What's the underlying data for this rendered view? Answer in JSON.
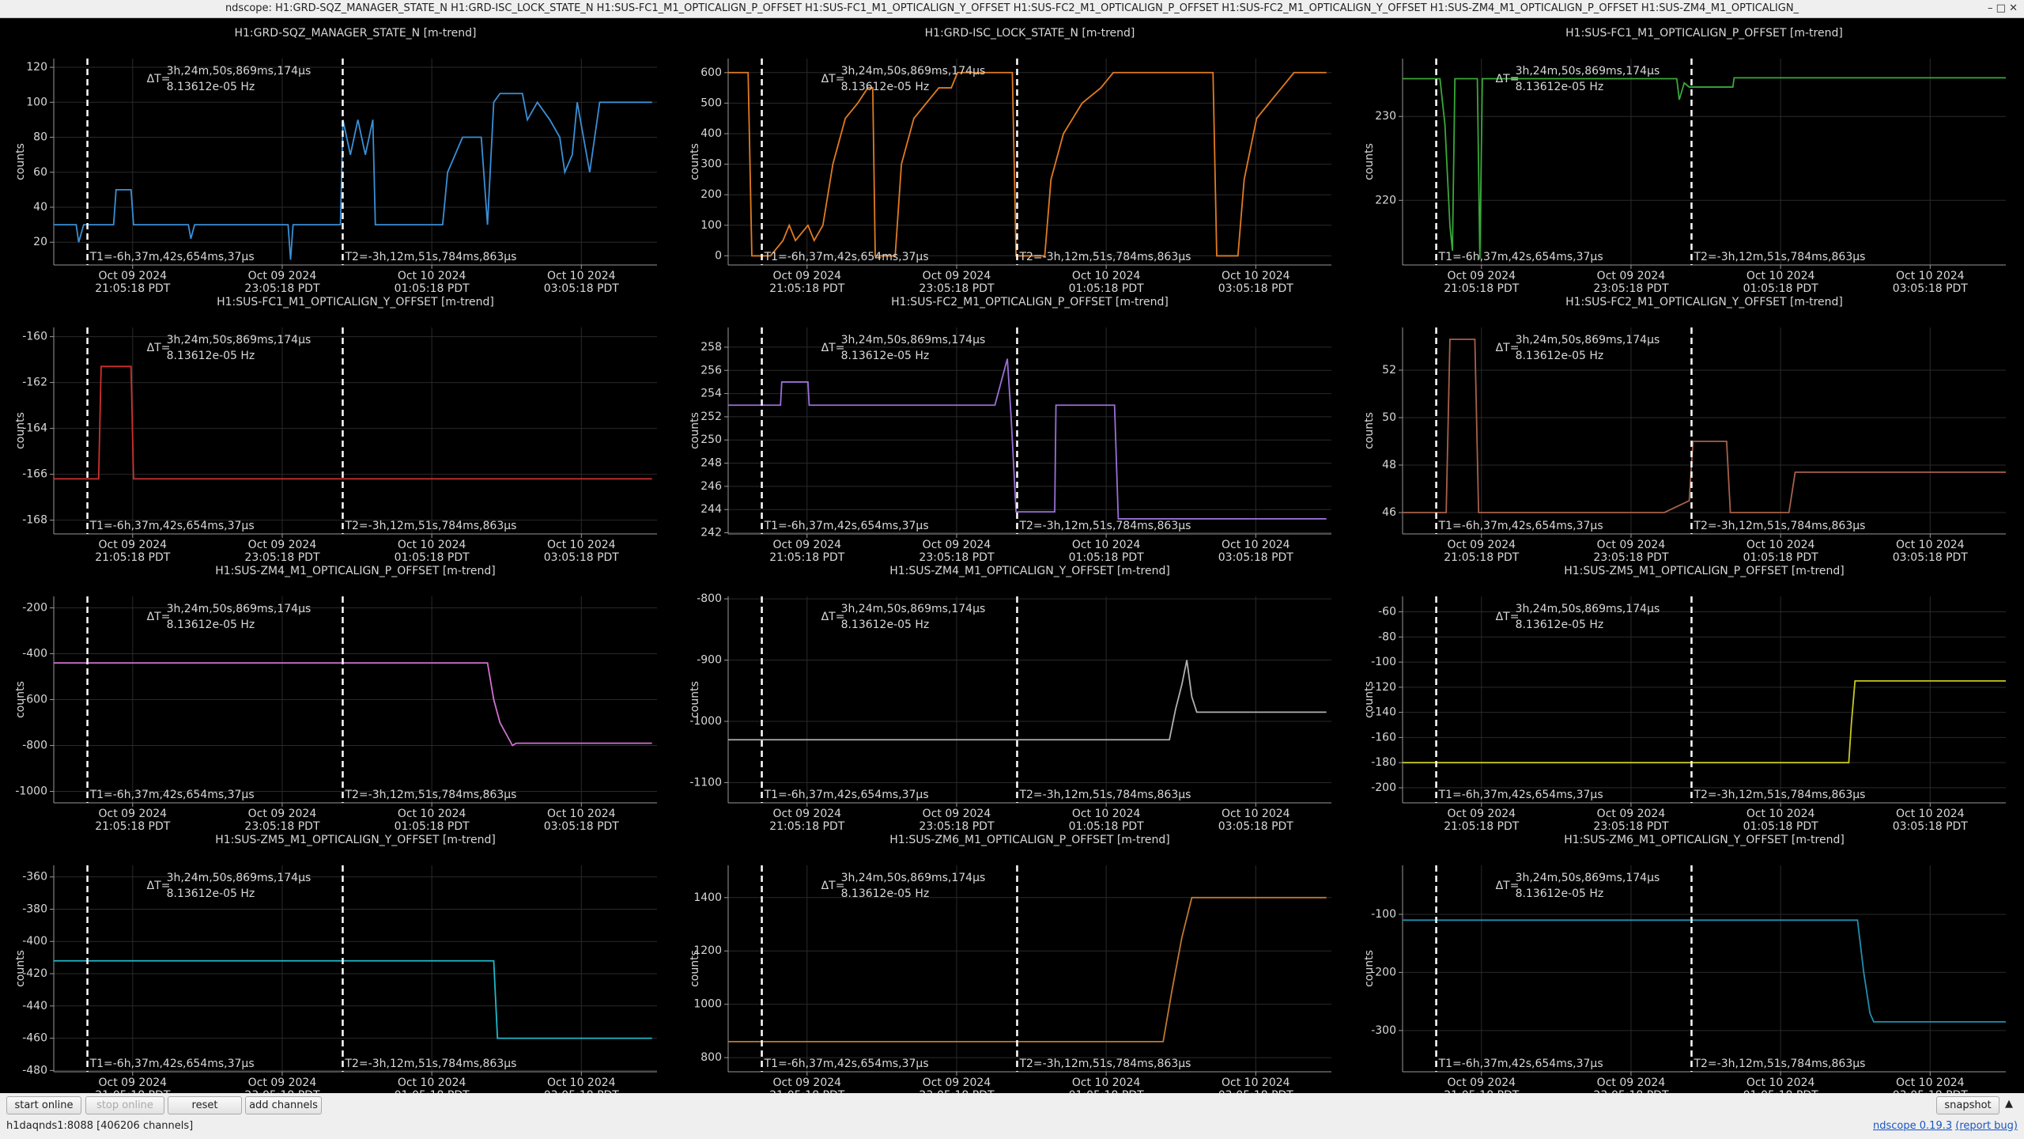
{
  "window_title": "ndscope: H1:GRD-SQZ_MANAGER_STATE_N H1:GRD-ISC_LOCK_STATE_N H1:SUS-FC1_M1_OPTICALIGN_P_OFFSET H1:SUS-FC1_M1_OPTICALIGN_Y_OFFSET H1:SUS-FC2_M1_OPTICALIGN_P_OFFSET H1:SUS-FC2_M1_OPTICALIGN_Y_OFFSET H1:SUS-ZM4_M1_OPTICALIGN_P_OFFSET H1:SUS-ZM4_M1_OPTICALIGN_",
  "x_axis": {
    "xlim": [
      "2024-10-09T20:02",
      "2024-10-10T04:06"
    ],
    "xticks": [
      {
        "value": "2024-10-09T21:05:18",
        "label": [
          "Oct 09 2024",
          "21:05:18 PDT"
        ]
      },
      {
        "value": "2024-10-09T23:05:18",
        "label": [
          "Oct 09 2024",
          "23:05:18 PDT"
        ]
      },
      {
        "value": "2024-10-10T01:05:18",
        "label": [
          "Oct 10 2024",
          "01:05:18 PDT"
        ]
      },
      {
        "value": "2024-10-10T03:05:18",
        "label": [
          "Oct 10 2024",
          "03:05:18 PDT"
        ]
      }
    ]
  },
  "cursors": {
    "t1": {
      "value": "2024-10-09T20:29:00",
      "label": "T1=-6h,37m,42s,654ms,37µs"
    },
    "t2": {
      "value": "2024-10-09T23:53:50",
      "label": "T2=-3h,12m,51s,784ms,863µs"
    },
    "delta_label": "ΔT=",
    "delta": "3h,24m,50s,869ms,174µs",
    "delta_freq": "8.13612e-05 Hz"
  },
  "chart_data": [
    {
      "type": "line",
      "title": "H1:GRD-SQZ_MANAGER_STATE_N [m-trend]",
      "ylabel": "counts",
      "ylim": [
        7,
        125
      ],
      "yticks": [
        20,
        40,
        60,
        80,
        100,
        120
      ],
      "grid": true,
      "series": [
        {
          "color": "#3a8fd6",
          "x": [
            "2024-10-09T20:02",
            "2024-10-09T20:20",
            "2024-10-09T20:22",
            "2024-10-09T20:26",
            "2024-10-09T20:50",
            "2024-10-09T20:52",
            "2024-10-09T21:04",
            "2024-10-09T21:06",
            "2024-10-09T21:50",
            "2024-10-09T21:52",
            "2024-10-09T21:55",
            "2024-10-09T23:10",
            "2024-10-09T23:12",
            "2024-10-09T23:14",
            "2024-10-09T23:52",
            "2024-10-09T23:54",
            "2024-10-10T00:00",
            "2024-10-10T00:06",
            "2024-10-10T00:12",
            "2024-10-10T00:18",
            "2024-10-10T00:20",
            "2024-10-10T01:14",
            "2024-10-10T01:18",
            "2024-10-10T01:30",
            "2024-10-10T01:45",
            "2024-10-10T01:50",
            "2024-10-10T01:55",
            "2024-10-10T02:00",
            "2024-10-10T02:18",
            "2024-10-10T02:22",
            "2024-10-10T02:30",
            "2024-10-10T02:40",
            "2024-10-10T02:48",
            "2024-10-10T02:52",
            "2024-10-10T02:58",
            "2024-10-10T03:02",
            "2024-10-10T03:12",
            "2024-10-10T03:20",
            "2024-10-10T04:02"
          ],
          "values": [
            30,
            30,
            20,
            30,
            30,
            50,
            50,
            30,
            30,
            22,
            30,
            30,
            10,
            30,
            30,
            90,
            70,
            90,
            70,
            90,
            30,
            30,
            60,
            80,
            80,
            30,
            100,
            105,
            105,
            90,
            100,
            90,
            80,
            60,
            70,
            100,
            60,
            100,
            100
          ]
        }
      ]
    },
    {
      "type": "line",
      "title": "H1:GRD-ISC_LOCK_STATE_N [m-trend]",
      "ylabel": "counts",
      "ylim": [
        -30,
        646
      ],
      "yticks": [
        0,
        100,
        200,
        300,
        400,
        500,
        600
      ],
      "grid": true,
      "series": [
        {
          "color": "#e07b22",
          "x": [
            "2024-10-09T20:02",
            "2024-10-09T20:18",
            "2024-10-09T20:21",
            "2024-10-09T20:36",
            "2024-10-09T20:46",
            "2024-10-09T20:51",
            "2024-10-09T20:56",
            "2024-10-09T21:06",
            "2024-10-09T21:11",
            "2024-10-09T21:18",
            "2024-10-09T21:26",
            "2024-10-09T21:36",
            "2024-10-09T21:46",
            "2024-10-09T21:54",
            "2024-10-09T21:58",
            "2024-10-09T22:00",
            "2024-10-09T22:16",
            "2024-10-09T22:21",
            "2024-10-09T22:31",
            "2024-10-09T22:41",
            "2024-10-09T22:51",
            "2024-10-09T23:01",
            "2024-10-09T23:06",
            "2024-10-09T23:50",
            "2024-10-09T23:53",
            "2024-10-10T00:16",
            "2024-10-10T00:21",
            "2024-10-10T00:31",
            "2024-10-10T00:46",
            "2024-10-10T01:01",
            "2024-10-10T01:11",
            "2024-10-10T02:31",
            "2024-10-10T02:34",
            "2024-10-10T02:51",
            "2024-10-10T02:56",
            "2024-10-10T03:06",
            "2024-10-10T03:16",
            "2024-10-10T03:26",
            "2024-10-10T03:36",
            "2024-10-10T04:02"
          ],
          "values": [
            600,
            600,
            0,
            0,
            50,
            100,
            50,
            100,
            50,
            100,
            300,
            450,
            500,
            550,
            550,
            0,
            0,
            300,
            450,
            500,
            550,
            550,
            600,
            600,
            0,
            0,
            250,
            400,
            500,
            550,
            600,
            600,
            0,
            0,
            250,
            450,
            500,
            550,
            600,
            600
          ]
        }
      ]
    },
    {
      "type": "line",
      "title": "H1:SUS-FC1_M1_OPTICALIGN_P_OFFSET [m-trend]",
      "ylabel": "counts",
      "ylim": [
        212.3,
        236.9
      ],
      "yticks": [
        220,
        230
      ],
      "grid": true,
      "series": [
        {
          "color": "#3aa83a",
          "x": [
            "2024-10-09T20:02",
            "2024-10-09T20:32",
            "2024-10-09T20:36",
            "2024-10-09T20:40",
            "2024-10-09T20:42",
            "2024-10-09T20:44",
            "2024-10-09T21:02",
            "2024-10-09T21:04",
            "2024-10-09T21:06",
            "2024-10-09T23:42",
            "2024-10-09T23:44",
            "2024-10-09T23:48",
            "2024-10-09T23:52",
            "2024-10-10T00:27",
            "2024-10-10T00:28",
            "2024-10-10T04:06"
          ],
          "values": [
            234.5,
            234.5,
            229,
            217,
            214,
            234.5,
            234.5,
            213,
            234.5,
            234.5,
            232,
            234,
            233.5,
            233.5,
            234.6,
            234.6
          ]
        }
      ]
    },
    {
      "type": "line",
      "title": "H1:SUS-FC1_M1_OPTICALIGN_Y_OFFSET [m-trend]",
      "ylabel": "counts",
      "ylim": [
        -168.6,
        -159.6
      ],
      "yticks": [
        -168,
        -166,
        -164,
        -162,
        -160
      ],
      "grid": true,
      "series": [
        {
          "color": "#d03030",
          "x": [
            "2024-10-09T20:02",
            "2024-10-09T20:38",
            "2024-10-09T20:40",
            "2024-10-09T21:04",
            "2024-10-09T21:06",
            "2024-10-10T04:02"
          ],
          "values": [
            -166.2,
            -166.2,
            -161.3,
            -161.3,
            -166.2,
            -166.2
          ]
        }
      ]
    },
    {
      "type": "line",
      "title": "H1:SUS-FC2_M1_OPTICALIGN_P_OFFSET [m-trend]",
      "ylabel": "counts",
      "ylim": [
        241.9,
        259.7
      ],
      "yticks": [
        242,
        244,
        246,
        248,
        250,
        252,
        254,
        256,
        258
      ],
      "grid": true,
      "series": [
        {
          "color": "#9a6fd8",
          "x": [
            "2024-10-09T20:02",
            "2024-10-09T20:44",
            "2024-10-09T20:45",
            "2024-10-09T21:06",
            "2024-10-09T21:07",
            "2024-10-09T23:36",
            "2024-10-09T23:41",
            "2024-10-09T23:46",
            "2024-10-09T23:49",
            "2024-10-09T23:53",
            "2024-10-10T00:24",
            "2024-10-10T00:25",
            "2024-10-10T01:12",
            "2024-10-10T01:15",
            "2024-10-10T04:02"
          ],
          "values": [
            253,
            253,
            255,
            255,
            253,
            253,
            255,
            257,
            252,
            243.8,
            243.8,
            253,
            253,
            243.2,
            243.2
          ]
        }
      ]
    },
    {
      "type": "line",
      "title": "H1:SUS-FC2_M1_OPTICALIGN_Y_OFFSET [m-trend]",
      "ylabel": "counts",
      "ylim": [
        45.1,
        53.8
      ],
      "yticks": [
        46,
        48,
        50,
        52
      ],
      "grid": true,
      "series": [
        {
          "color": "#a8604a",
          "x": [
            "2024-10-09T20:02",
            "2024-10-09T20:37",
            "2024-10-09T20:40",
            "2024-10-09T21:00",
            "2024-10-09T21:03",
            "2024-10-09T23:32",
            "2024-10-09T23:52",
            "2024-10-09T23:55",
            "2024-10-10T00:22",
            "2024-10-10T00:25",
            "2024-10-10T01:12",
            "2024-10-10T01:17",
            "2024-10-10T04:06"
          ],
          "values": [
            46,
            46,
            53.3,
            53.3,
            46,
            46,
            46.5,
            49,
            49,
            46,
            46,
            47.7,
            47.7
          ]
        }
      ]
    },
    {
      "type": "line",
      "title": "H1:SUS-ZM4_M1_OPTICALIGN_P_OFFSET [m-trend]",
      "ylabel": "counts",
      "ylim": [
        -1050,
        -150
      ],
      "yticks": [
        -1000,
        -800,
        -600,
        -400,
        -200
      ],
      "grid": true,
      "series": [
        {
          "color": "#d070d0",
          "x": [
            "2024-10-09T20:02",
            "2024-10-10T01:50",
            "2024-10-10T01:55",
            "2024-10-10T02:00",
            "2024-10-10T02:05",
            "2024-10-10T02:10",
            "2024-10-10T02:13",
            "2024-10-10T04:02"
          ],
          "values": [
            -440,
            -440,
            -600,
            -700,
            -750,
            -800,
            -790,
            -790
          ]
        }
      ]
    },
    {
      "type": "line",
      "title": "H1:SUS-ZM4_M1_OPTICALIGN_Y_OFFSET [m-trend]",
      "ylabel": "counts",
      "ylim": [
        -1133,
        -796
      ],
      "yticks": [
        -1100,
        -1000,
        -900,
        -800
      ],
      "grid": true,
      "series": [
        {
          "color": "#b0b0b0",
          "x": [
            "2024-10-09T20:02",
            "2024-10-10T01:56",
            "2024-10-10T02:01",
            "2024-10-10T02:06",
            "2024-10-10T02:10",
            "2024-10-10T02:14",
            "2024-10-10T02:18",
            "2024-10-10T04:02"
          ],
          "values": [
            -1030,
            -1030,
            -980,
            -940,
            -900,
            -960,
            -985,
            -985
          ]
        }
      ]
    },
    {
      "type": "line",
      "title": "H1:SUS-ZM5_M1_OPTICALIGN_P_OFFSET [m-trend]",
      "ylabel": "counts",
      "ylim": [
        -212,
        -47.7
      ],
      "yticks": [
        -200,
        -180,
        -160,
        -140,
        -120,
        -100,
        -80,
        -60
      ],
      "grid": true,
      "series": [
        {
          "color": "#c8c820",
          "x": [
            "2024-10-09T20:02",
            "2024-10-10T02:00",
            "2024-10-10T02:02",
            "2024-10-10T02:05",
            "2024-10-10T04:06"
          ],
          "values": [
            -180,
            -180,
            -150,
            -115,
            -115
          ]
        }
      ]
    },
    {
      "type": "line",
      "title": "H1:SUS-ZM5_M1_OPTICALIGN_Y_OFFSET [m-trend]",
      "ylabel": "counts",
      "ylim": [
        -480.8,
        -352.8
      ],
      "yticks": [
        -480,
        -460,
        -440,
        -420,
        -400,
        -380,
        -360
      ],
      "grid": true,
      "series": [
        {
          "color": "#20b8c8",
          "x": [
            "2024-10-09T20:02",
            "2024-10-10T01:55",
            "2024-10-10T01:58",
            "2024-10-10T04:02"
          ],
          "values": [
            -412,
            -412,
            -460,
            -460
          ]
        }
      ]
    },
    {
      "type": "line",
      "title": "H1:SUS-ZM6_M1_OPTICALIGN_P_OFFSET [m-trend]",
      "ylabel": "counts",
      "ylim": [
        747,
        1521
      ],
      "yticks": [
        800,
        1000,
        1200,
        1400
      ],
      "grid": true,
      "series": [
        {
          "color": "#c07830",
          "x": [
            "2024-10-09T20:02",
            "2024-10-10T01:51",
            "2024-10-10T01:58",
            "2024-10-10T02:06",
            "2024-10-10T02:14",
            "2024-10-10T04:02"
          ],
          "values": [
            860,
            860,
            1050,
            1250,
            1400,
            1400
          ]
        }
      ]
    },
    {
      "type": "line",
      "title": "H1:SUS-ZM6_M1_OPTICALIGN_Y_OFFSET [m-trend]",
      "ylabel": "counts",
      "ylim": [
        -371,
        -15.6
      ],
      "yticks": [
        -300,
        -200,
        -100
      ],
      "grid": true,
      "series": [
        {
          "color": "#2090b0",
          "x": [
            "2024-10-09T20:02",
            "2024-10-10T02:07",
            "2024-10-10T02:12",
            "2024-10-10T02:17",
            "2024-10-10T02:20",
            "2024-10-10T04:06"
          ],
          "values": [
            -110,
            -110,
            -200,
            -270,
            -285,
            -285
          ]
        }
      ]
    }
  ],
  "toolbar": {
    "buttons": [
      "start online",
      "stop online",
      "reset",
      "add channels"
    ],
    "snapshot": "snapshot"
  },
  "status": {
    "server": "h1daqnds1:8088",
    "channels": "[406206 channels]",
    "version": "ndscope 0.19.3",
    "report": "(report bug)"
  }
}
